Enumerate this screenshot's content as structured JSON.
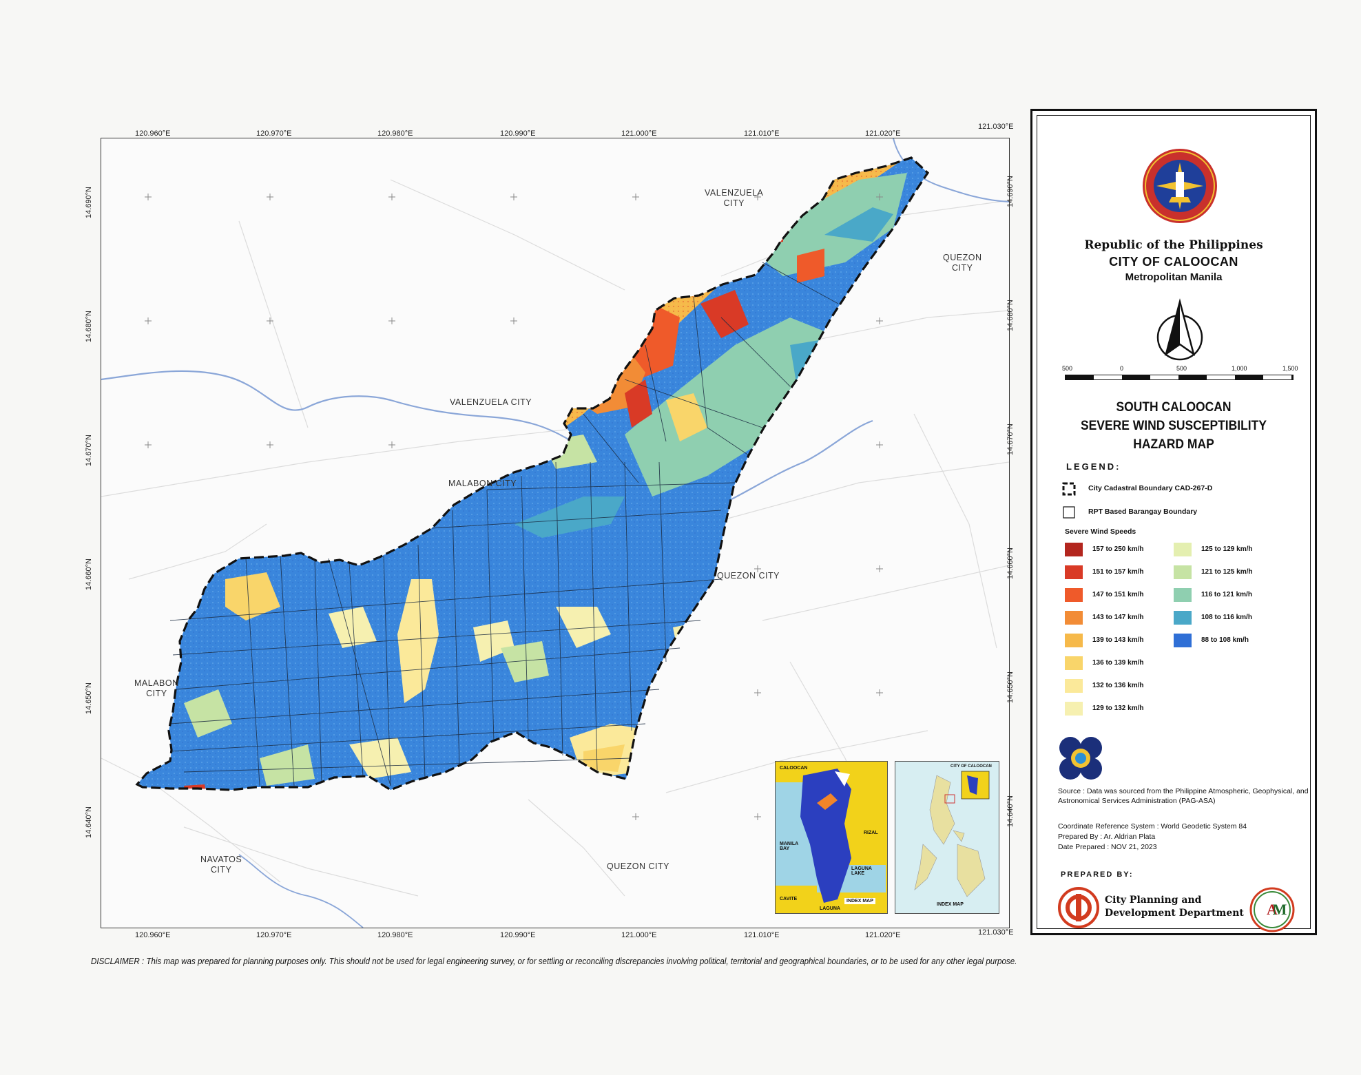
{
  "header": {
    "country": "Republic of the Philippines",
    "city": "CITY OF CALOOCAN",
    "region": "Metropolitan Manila"
  },
  "map_title": {
    "line1": "SOUTH CALOOCAN",
    "line2": "SEVERE WIND SUSCEPTIBILITY",
    "line3": "HAZARD MAP"
  },
  "grid": {
    "longitudes": [
      "120.960°E",
      "120.970°E",
      "120.980°E",
      "120.990°E",
      "121.000°E",
      "121.010°E",
      "121.020°E",
      "121.030°E"
    ],
    "latitudes": [
      "14.690°N",
      "14.680°N",
      "14.670°N",
      "14.660°N",
      "14.650°N",
      "14.640°N"
    ]
  },
  "places": {
    "valenzuela_north": "VALENZUELA\nCITY",
    "valenzuela": "VALENZUELA CITY",
    "malabon": "MALABON CITY",
    "malabon_west": "MALABON\nCITY",
    "navotas": "NAVATOS\nCITY",
    "quezon_ne": "QUEZON\nCITY",
    "quezon_mid": "QUEZON CITY",
    "quezon_south": "QUEZON CITY"
  },
  "scale": {
    "labels": [
      "500",
      "0",
      "500",
      "1,000",
      "1,500"
    ]
  },
  "legend": {
    "heading": "LEGEND:",
    "boundary_city": "City Cadastral Boundary CAD-267-D",
    "boundary_barangay": "RPT Based Barangay Boundary",
    "wind_title": "Severe Wind Speeds",
    "classes": [
      {
        "label": "157 to 250 km/h",
        "color": "#b3261e"
      },
      {
        "label": "151 to 157 km/h",
        "color": "#d93a26"
      },
      {
        "label": "147 to 151 km/h",
        "color": "#ef5a2a"
      },
      {
        "label": "143 to 147 km/h",
        "color": "#f28c36"
      },
      {
        "label": "139 to 143 km/h",
        "color": "#f6b94a"
      },
      {
        "label": "136 to 139 km/h",
        "color": "#f9d56a"
      },
      {
        "label": "132 to 136 km/h",
        "color": "#fbe99a"
      },
      {
        "label": "129 to 132 km/h",
        "color": "#f6f0b0"
      },
      {
        "label": "125 to 129 km/h",
        "color": "#e4efb0"
      },
      {
        "label": "121 to 125 km/h",
        "color": "#c6e3a4"
      },
      {
        "label": "116 to 121 km/h",
        "color": "#8fcfb0"
      },
      {
        "label": "108 to 116 km/h",
        "color": "#4aa8c8"
      },
      {
        "label": "88 to 108 km/h",
        "color": "#2f6fd6"
      }
    ]
  },
  "source": {
    "text": "Source :  Data was sourced from the Philippine Atmospheric, Geophysical, and Astronomical Services Administration (PAG-ASA)",
    "crs": "Coordinate Reference System : World Geodetic System 84",
    "prepared_by": "Prepared By : Ar. Aldrian Plata",
    "date": "Date Prepared : NOV 21, 2023"
  },
  "prepared": {
    "heading": "PREPARED BY:",
    "office": "City Planning and\nDevelopment Department"
  },
  "insets": {
    "index_map_label": "INDEX MAP",
    "caloocan": "CALOOCAN",
    "manila_bay": "MANILA\nBAY",
    "rizal": "RIZAL",
    "laguna_lake": "LAGUNA\nLAKE",
    "cavite": "CAVITE",
    "laguna": "LAGUNA",
    "city_of_caloocan": "CITY OF CALOOCAN",
    "index_map_label2": "INDEX MAP"
  },
  "disclaimer": "DISCLAIMER : This map was prepared for planning purposes only. This should not be used for legal engineering survey, or for settling or reconciling discrepancies involving political, territorial and geographical boundaries, or to be used for any other legal purpose.",
  "colors": {
    "river": "#8aa6d8",
    "blue_zone": "#3a86dc",
    "boundary": "#111111"
  }
}
